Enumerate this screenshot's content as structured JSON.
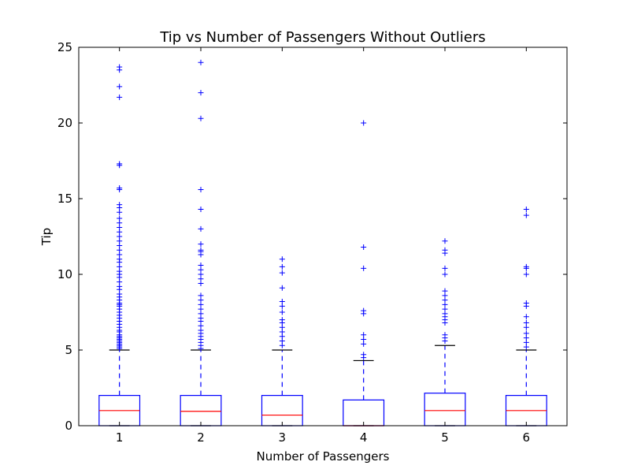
{
  "colors": {
    "box": "#0000ff",
    "median": "#ff0000",
    "whisker": "#0000ff",
    "cap": "#000000",
    "flier": "#0000ff",
    "axis": "#000000",
    "background": "#ffffff"
  },
  "chart_data": {
    "type": "box",
    "title": "Tip vs Number of Passengers Without Outliers",
    "xlabel": "Number of Passengers",
    "ylabel": "Tip",
    "categories": [
      "1",
      "2",
      "3",
      "4",
      "5",
      "6"
    ],
    "ylim": [
      0,
      25
    ],
    "yticks": [
      0,
      5,
      10,
      15,
      20,
      25
    ],
    "grid": false,
    "legend": "none",
    "boxes": [
      {
        "category": "1",
        "whisker_low": 0,
        "q1": 0,
        "median": 1.0,
        "q3": 2.0,
        "whisker_high": 5.0,
        "fliers": [
          5.1,
          5.2,
          5.3,
          5.4,
          5.5,
          5.6,
          5.7,
          5.8,
          5.9,
          6.0,
          6.2,
          6.3,
          6.5,
          6.7,
          6.9,
          7.1,
          7.3,
          7.5,
          7.7,
          7.9,
          8.0,
          8.1,
          8.3,
          8.5,
          8.7,
          9.0,
          9.2,
          9.5,
          9.8,
          10.0,
          10.2,
          10.5,
          10.8,
          11.0,
          11.3,
          11.6,
          11.9,
          12.2,
          12.5,
          12.8,
          13.1,
          13.4,
          13.7,
          14.1,
          14.4,
          14.6,
          15.6,
          15.7,
          17.2,
          17.3,
          21.7,
          22.4,
          23.5,
          23.7
        ]
      },
      {
        "category": "2",
        "whisker_low": 0,
        "q1": 0,
        "median": 0.95,
        "q3": 2.0,
        "whisker_high": 5.0,
        "fliers": [
          5.1,
          5.3,
          5.5,
          5.7,
          5.9,
          6.1,
          6.3,
          6.6,
          6.9,
          7.1,
          7.4,
          7.7,
          8.0,
          8.3,
          8.6,
          9.4,
          9.7,
          10.0,
          10.3,
          10.6,
          11.3,
          11.5,
          11.6,
          12.0,
          13.0,
          14.3,
          15.6,
          20.3,
          22.0,
          24.0
        ]
      },
      {
        "category": "3",
        "whisker_low": 0,
        "q1": 0,
        "median": 0.7,
        "q3": 2.0,
        "whisker_high": 5.0,
        "fliers": [
          5.3,
          5.6,
          5.9,
          6.2,
          6.5,
          6.8,
          7.0,
          7.5,
          7.9,
          8.2,
          9.1,
          10.1,
          10.5,
          11.0
        ]
      },
      {
        "category": "4",
        "whisker_low": 0,
        "q1": 0,
        "median": 0,
        "q3": 1.7,
        "whisker_high": 4.3,
        "fliers": [
          4.5,
          4.7,
          5.4,
          5.7,
          6.0,
          7.4,
          7.6,
          10.4,
          11.8,
          20.0
        ]
      },
      {
        "category": "5",
        "whisker_low": 0,
        "q1": 0,
        "median": 1.0,
        "q3": 2.15,
        "whisker_high": 5.3,
        "fliers": [
          5.6,
          5.8,
          6.0,
          6.8,
          7.0,
          7.2,
          7.4,
          7.7,
          8.0,
          8.3,
          8.6,
          8.9,
          10.0,
          10.4,
          11.4,
          11.6,
          12.2
        ]
      },
      {
        "category": "6",
        "whisker_low": 0,
        "q1": 0,
        "median": 1.0,
        "q3": 2.0,
        "whisker_high": 5.0,
        "fliers": [
          5.2,
          5.5,
          5.8,
          6.1,
          6.5,
          6.8,
          7.2,
          7.9,
          8.1,
          10.0,
          10.4,
          10.5,
          13.9,
          14.3
        ]
      }
    ]
  }
}
